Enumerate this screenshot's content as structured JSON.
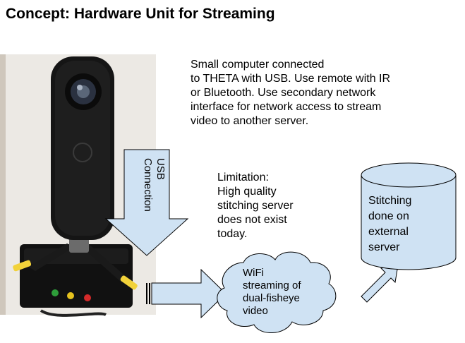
{
  "title": "Concept: Hardware Unit for Streaming",
  "description": [
    "Small computer connected",
    "to THETA with USB. Use remote with IR",
    "or Bluetooth. Use secondary network",
    "interface for network access to stream",
    "video to another server."
  ],
  "usb_label": [
    "USB",
    "Connection"
  ],
  "limitation": [
    "Limitation:",
    "High quality",
    "stitching server",
    "does not exist",
    "today."
  ],
  "wifi_cloud": [
    "WiFi",
    "streaming of",
    "dual-fisheye",
    "video"
  ],
  "stitching_cylinder": [
    "Stitching",
    "done on",
    "external",
    "server"
  ],
  "colors": {
    "shape_fill": "#cfe2f3",
    "shape_stroke": "#000000",
    "photo_bg": "#ece9e4",
    "led_green": "#2e9e3a",
    "led_yellow": "#e6c21e",
    "led_red": "#d42a2a",
    "clip_yellow": "#f2d23a"
  },
  "photo_alt": "THETA camera on small computer base"
}
